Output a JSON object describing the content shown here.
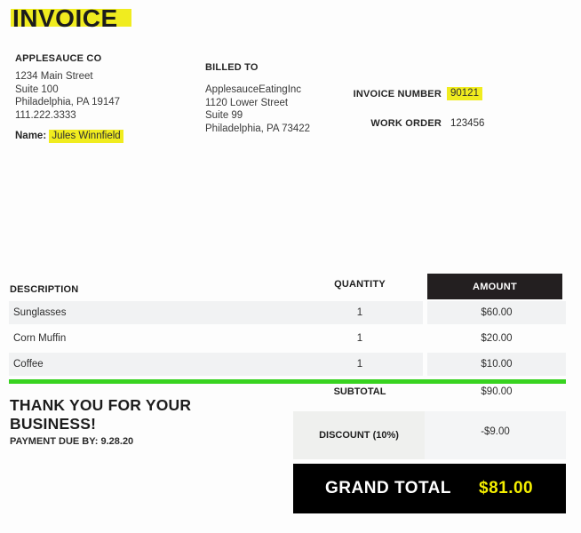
{
  "invoice": {
    "title": "INVOICE",
    "company": {
      "name": "APPLESAUCE CO",
      "address_lines": [
        "1234 Main Street",
        "Suite 100",
        "Philadelphia, PA 19147",
        "111.222.3333"
      ],
      "contact_label": "Name:",
      "contact_name": "Jules Winnfield"
    },
    "billed_to": {
      "label": "BILLED TO",
      "lines": [
        "ApplesauceEatingInc",
        "1120 Lower Street",
        "Suite 99",
        "Philadelphia, PA 73422"
      ]
    },
    "meta": {
      "invoice_number_label": "INVOICE NUMBER",
      "invoice_number": "90121",
      "work_order_label": "WORK ORDER",
      "work_order": "123456"
    },
    "table": {
      "headers": {
        "description": "DESCRIPTION",
        "quantity": "QUANTITY",
        "amount": "AMOUNT"
      },
      "rows": [
        {
          "description": "Sunglasses",
          "quantity": "1",
          "amount": "$60.00"
        },
        {
          "description": "Corn Muffin",
          "quantity": "1",
          "amount": "$20.00"
        },
        {
          "description": "Coffee",
          "quantity": "1",
          "amount": "$10.00"
        }
      ]
    },
    "totals": {
      "subtotal_label": "SUBTOTAL",
      "subtotal": "$90.00",
      "discount_label": "DISCOUNT (10%)",
      "discount": "-$9.00",
      "grand_total_label": "GRAND TOTAL",
      "grand_total": "$81.00"
    },
    "footer": {
      "thanks_line1": "THANK YOU FOR YOUR",
      "thanks_line2": "BUSINESS!",
      "payment_due": "PAYMENT DUE BY: 9.28.20"
    }
  },
  "colors": {
    "highlight_yellow": "#f0ec1f",
    "accent_green": "#38d320",
    "amount_header_bg": "#231f20",
    "grand_total_bg": "#000000",
    "grand_total_amount": "#f4ee00",
    "row_gray": "#f1f2f3"
  }
}
